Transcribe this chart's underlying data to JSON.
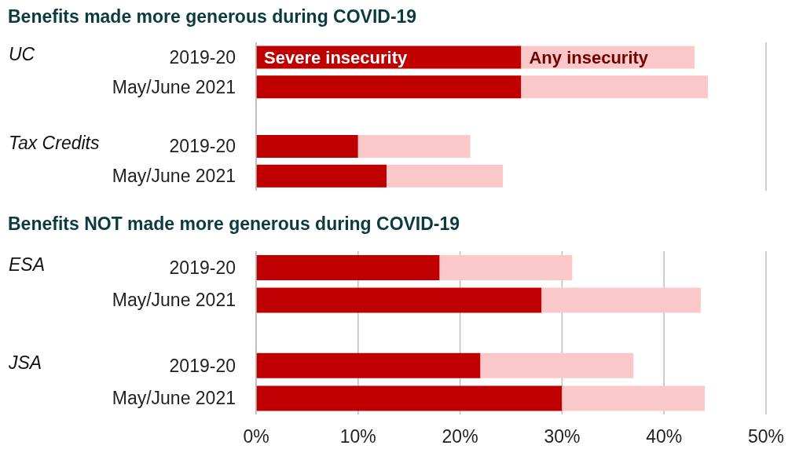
{
  "chart_data": [
    {
      "type": "bar",
      "title": "Benefits made more generous during COVID-19",
      "orientation": "horizontal",
      "stacked": true,
      "categories": [
        "2019-20",
        "May/June 2021",
        null,
        "2019-20",
        "May/June 2021"
      ],
      "annotations": [
        "UC",
        "Tax Credits"
      ],
      "series": [
        {
          "name": "Severe insecurity",
          "color": "#c00000",
          "values": [
            26,
            26,
            null,
            10,
            12.8
          ]
        },
        {
          "name": "Any insecurity",
          "color": "#fbc8c9",
          "values": [
            17,
            18.3,
            null,
            11,
            11.4
          ]
        }
      ],
      "xlim": [
        0,
        50
      ],
      "xticks": [
        {
          "value": 0,
          "label": null
        },
        {
          "value": 10,
          "label": null
        },
        {
          "value": 20,
          "label": null
        },
        {
          "value": 30,
          "label": null
        },
        {
          "value": 40,
          "label": null
        },
        {
          "value": 50,
          "label": null
        }
      ],
      "grid": "x",
      "tick_labels": "y"
    },
    {
      "type": "bar",
      "title": "Benefits NOT made more generous during COVID-19",
      "orientation": "horizontal",
      "stacked": true,
      "categories": [
        "2019-20",
        "May/June 2021",
        null,
        "2019-20",
        "May/June 2021"
      ],
      "annotations": [
        "ESA",
        "JSA"
      ],
      "series": [
        {
          "color": "#c00000",
          "values": [
            18,
            28,
            null,
            22,
            30
          ]
        },
        {
          "color": "#fbc8c9",
          "values": [
            13,
            15.6,
            null,
            15,
            14
          ]
        }
      ],
      "xlim": [
        0,
        50
      ],
      "xticks": [
        {
          "value": 0,
          "label": "0%"
        },
        {
          "value": 10,
          "label": "10%"
        },
        {
          "value": 20,
          "label": "20%"
        },
        {
          "value": 30,
          "label": "30%"
        },
        {
          "value": 40,
          "label": "40%"
        },
        {
          "value": 50,
          "label": "50%"
        }
      ],
      "grid": "x"
    }
  ]
}
